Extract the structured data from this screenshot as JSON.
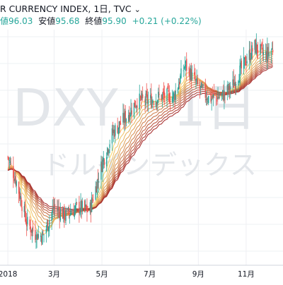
{
  "header": {
    "title": "R CURRENCY INDEX, 1日, TVC",
    "chevron": "⌄",
    "line2": [
      {
        "label": "",
        "value": "値96.03"
      },
      {
        "label": "安値",
        "value": "95.68"
      },
      {
        "label": "終値",
        "value": "95.90"
      },
      {
        "label": "",
        "value": "+0.21 (+0.22%)"
      }
    ]
  },
  "watermark": {
    "symbol": "DXY",
    "suffix": "1日",
    "name": "ドルインデックス"
  },
  "colors": {
    "up": "#26a69a",
    "down": "#ef5350",
    "ribbon_fast": "#f9d56e",
    "ribbon_slow": "#a52a2a",
    "grid": "#eef0f3",
    "axis_text": "#131722",
    "watermark": "#e3e6ea"
  },
  "chart_data": {
    "type": "line",
    "title": "",
    "description_kind": "candlestick with moving-average ribbon",
    "x_ticks": [
      "2018",
      "3月",
      "5月",
      "7月",
      "9月",
      "11月"
    ],
    "ylim": [
      87.5,
      97.5
    ],
    "grid": true,
    "price_path": [
      {
        "x": "2018-01-01",
        "y": 92.1
      },
      {
        "x": "2018-01-12",
        "y": 91.0
      },
      {
        "x": "2018-01-25",
        "y": 89.2
      },
      {
        "x": "2018-02-05",
        "y": 88.7
      },
      {
        "x": "2018-02-15",
        "y": 88.6
      },
      {
        "x": "2018-03-01",
        "y": 89.9
      },
      {
        "x": "2018-03-15",
        "y": 89.5
      },
      {
        "x": "2018-04-01",
        "y": 89.9
      },
      {
        "x": "2018-04-15",
        "y": 89.7
      },
      {
        "x": "2018-05-01",
        "y": 91.8
      },
      {
        "x": "2018-05-15",
        "y": 93.2
      },
      {
        "x": "2018-06-01",
        "y": 93.9
      },
      {
        "x": "2018-06-15",
        "y": 94.6
      },
      {
        "x": "2018-07-01",
        "y": 94.6
      },
      {
        "x": "2018-07-15",
        "y": 94.8
      },
      {
        "x": "2018-08-01",
        "y": 94.8
      },
      {
        "x": "2018-08-15",
        "y": 96.2
      },
      {
        "x": "2018-09-01",
        "y": 95.2
      },
      {
        "x": "2018-09-15",
        "y": 94.7
      },
      {
        "x": "2018-10-01",
        "y": 94.8
      },
      {
        "x": "2018-10-15",
        "y": 95.3
      },
      {
        "x": "2018-11-01",
        "y": 96.4
      },
      {
        "x": "2018-11-12",
        "y": 97.0
      },
      {
        "x": "2018-11-25",
        "y": 96.6
      },
      {
        "x": "2018-12-05",
        "y": 96.9
      }
    ],
    "ribbon_periods": [
      10,
      15,
      20,
      25,
      30,
      35,
      40,
      45,
      50,
      55,
      60
    ]
  }
}
